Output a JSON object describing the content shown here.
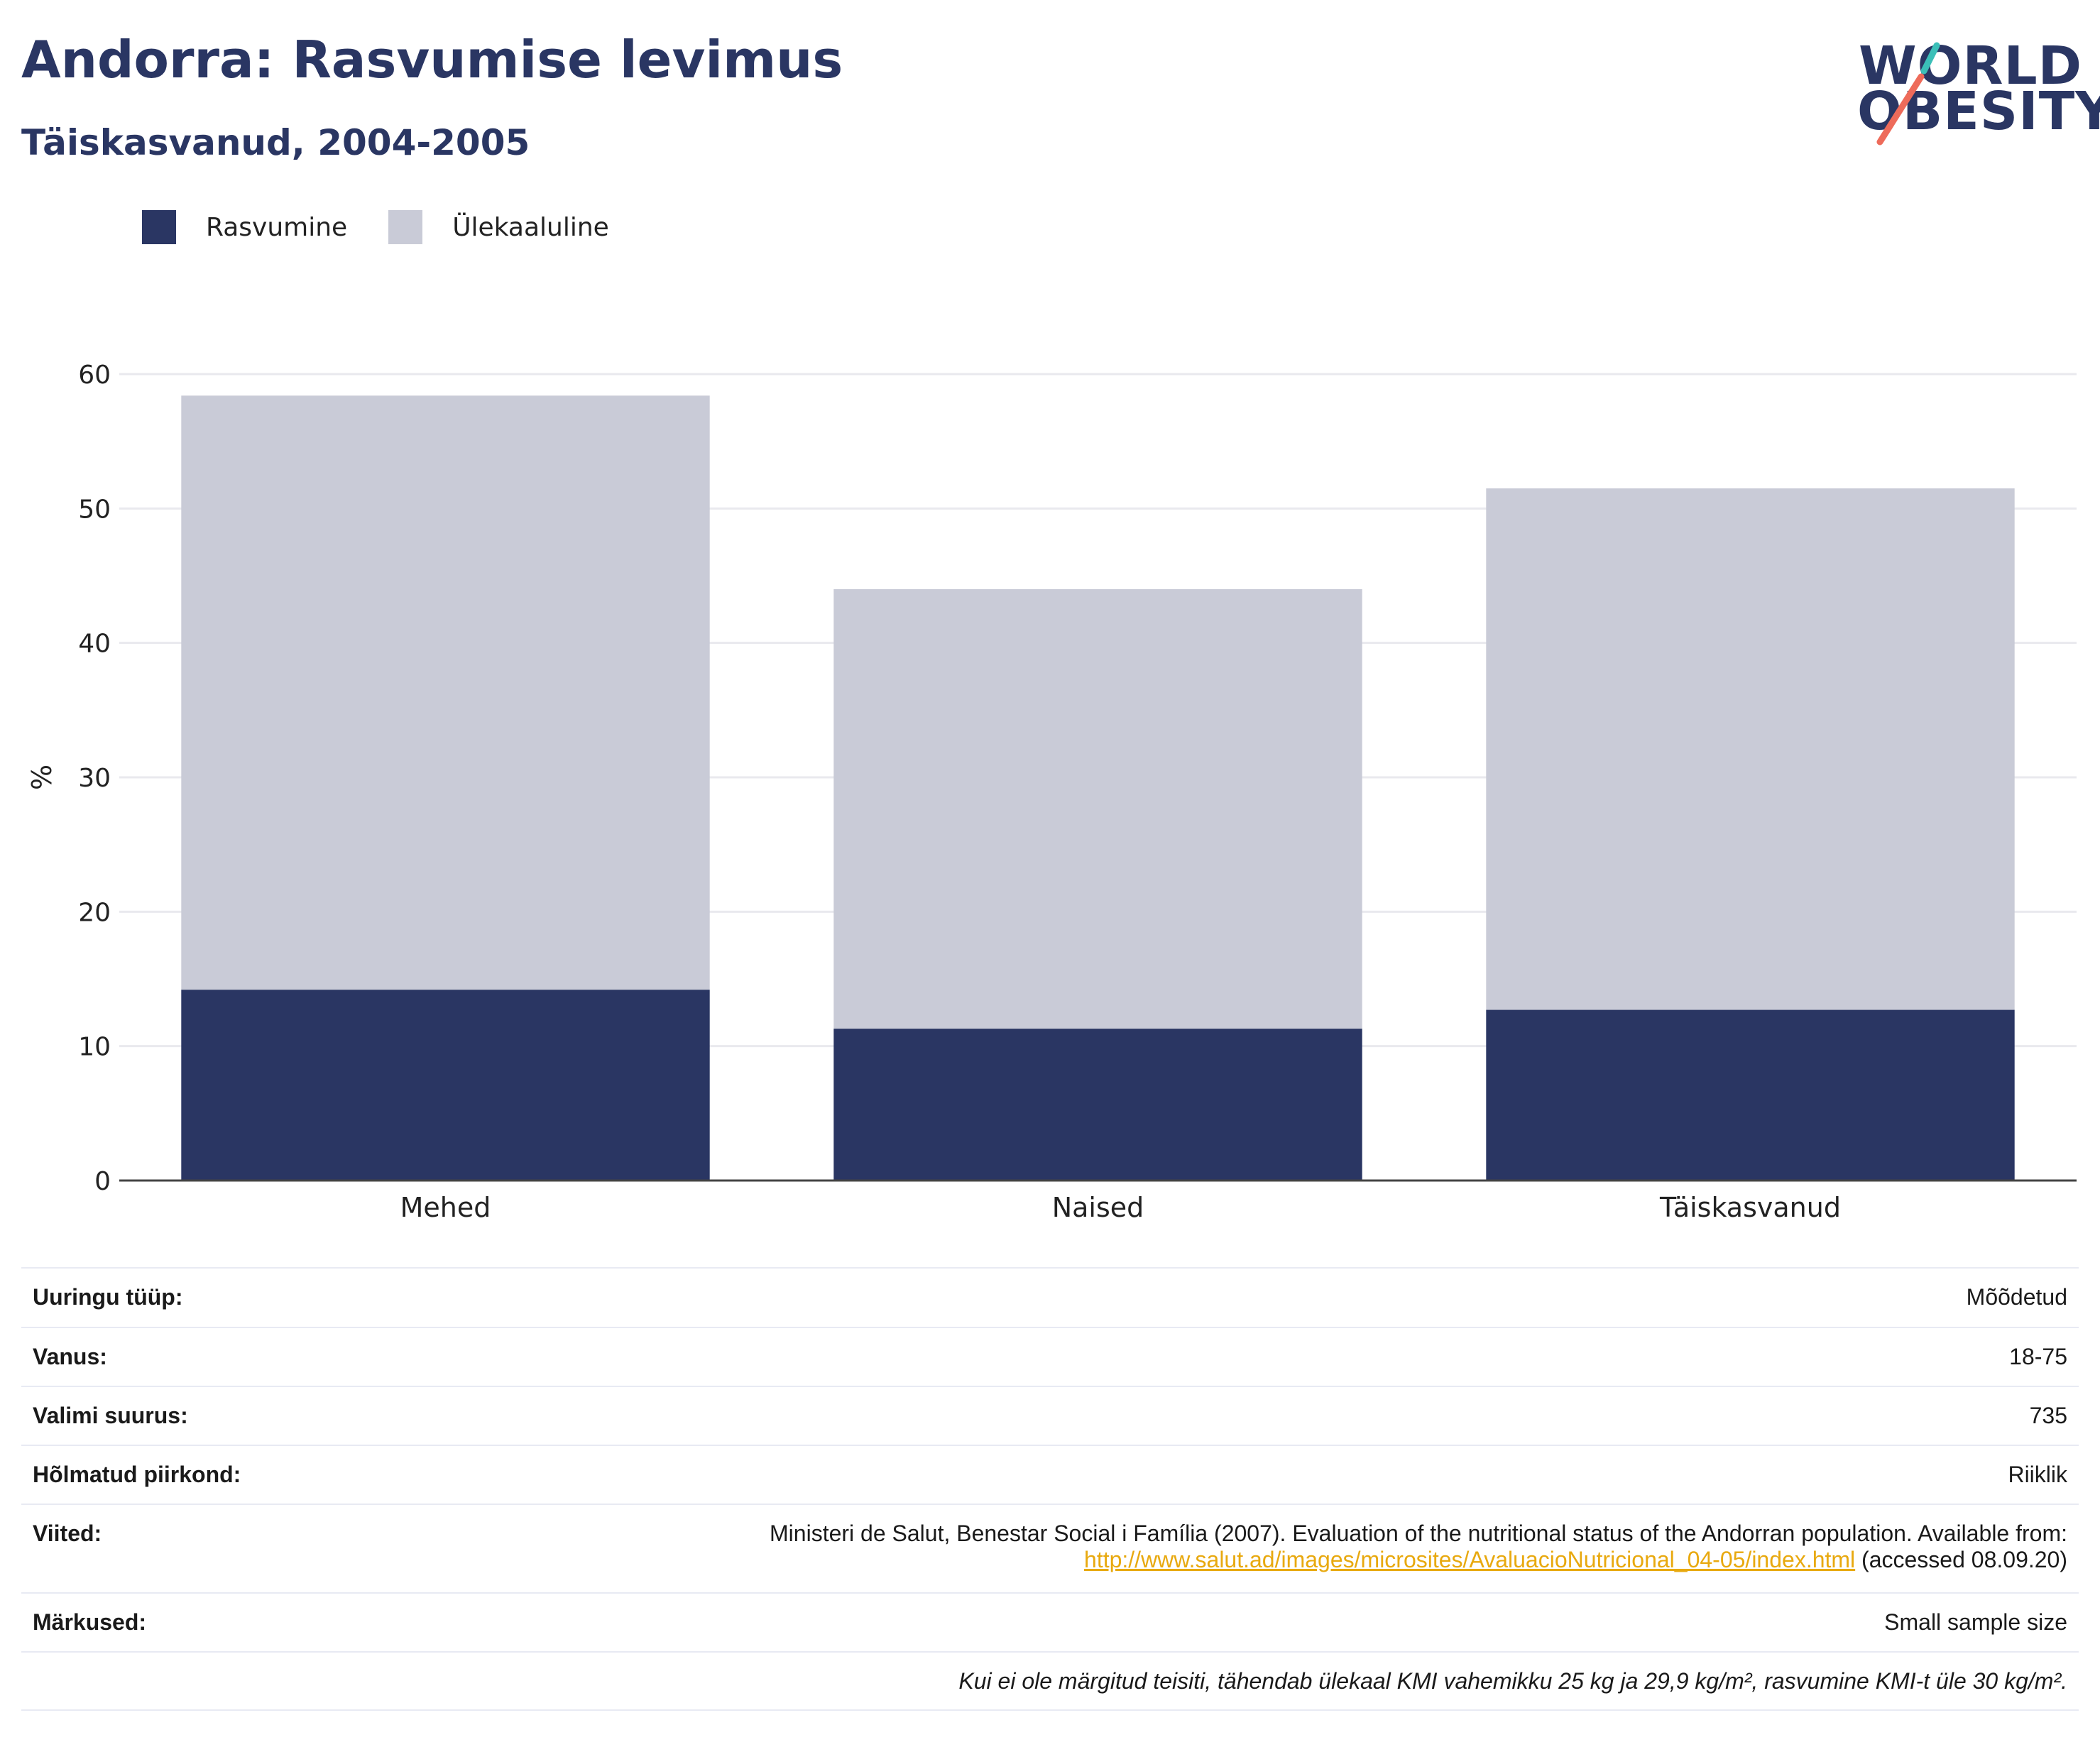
{
  "header": {
    "title": "Andorra: Rasvumise levimus",
    "subtitle": "Täiskasvanud, 2004-2005"
  },
  "logo": {
    "line1": "WORLD",
    "line2": "OBESITY",
    "colors": {
      "text": "#2a3663",
      "slash_top": "#3bbfb8",
      "slash_bottom": "#ee6b5a"
    }
  },
  "legend": [
    {
      "label": "Rasvumine",
      "color": "#2a3663"
    },
    {
      "label": "Ülekaaluline",
      "color": "#c9cbd7"
    }
  ],
  "chart_data": {
    "type": "bar",
    "stacked": true,
    "categories": [
      "Mehed",
      "Naised",
      "Täiskasvanud"
    ],
    "series": [
      {
        "name": "Rasvumine",
        "color": "#2a3663",
        "values": [
          14.2,
          11.3,
          12.7
        ]
      },
      {
        "name": "Ülekaaluline",
        "color": "#c9cbd7",
        "values": [
          44.2,
          32.7,
          38.8
        ]
      }
    ],
    "ylabel": "%",
    "ylim": [
      0,
      60
    ],
    "yticks": [
      0,
      10,
      20,
      30,
      40,
      50,
      60
    ],
    "grid": true,
    "legend_position": "top-left"
  },
  "meta": {
    "survey_type": {
      "label": "Uuringu tüüp:",
      "value": "Mõõdetud"
    },
    "age": {
      "label": "Vanus:",
      "value": "18-75"
    },
    "sample_size": {
      "label": "Valimi suurus:",
      "value": "735"
    },
    "region": {
      "label": "Hõlmatud piirkond:",
      "value": "Riiklik"
    },
    "references": {
      "label": "Viited:",
      "text": "Ministeri de Salut, Benestar Social i Família (2007). Evaluation of the nutritional status of the Andorran population. Available from:",
      "link": "http://www.salut.ad/images/microsites/AvaluacioNutricional_04-05/index.html",
      "suffix": "(accessed 08.09.20)"
    },
    "notes": {
      "label": "Märkused:",
      "value": "Small sample size"
    },
    "footnote": "Kui ei ole märgitud teisiti, tähendab ülekaal KMI vahemikku 25 kg ja 29,9 kg/m², rasvumine KMI-t üle 30 kg/m²."
  }
}
